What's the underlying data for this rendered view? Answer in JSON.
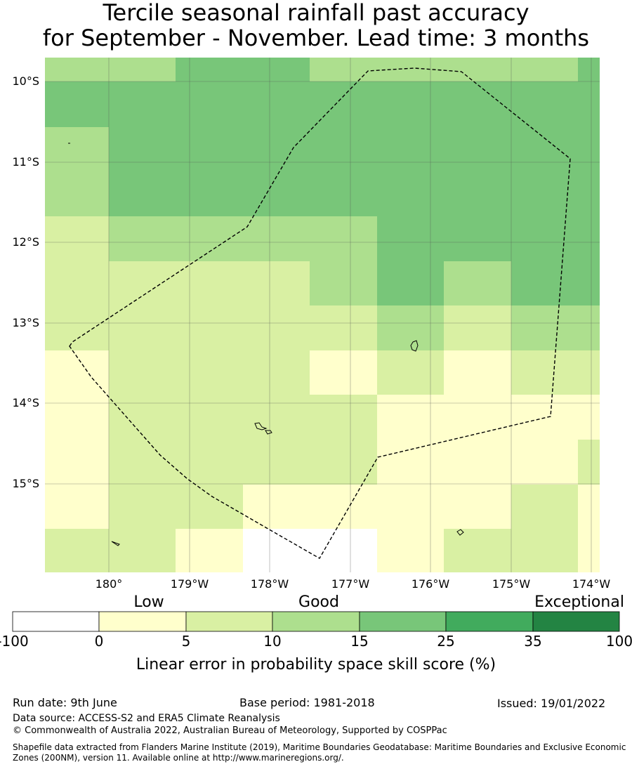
{
  "title": {
    "line1": "Tercile seasonal rainfall past accuracy",
    "line2": "for September - November. Lead time: 3 months"
  },
  "map": {
    "lat_labels": [
      "10°S",
      "11°S",
      "12°S",
      "13°S",
      "14°S",
      "15°S"
    ],
    "lon_labels": [
      "180°",
      "179°W",
      "178°W",
      "177°W",
      "176°W",
      "175°W",
      "174°W"
    ],
    "grid_colors": [
      [
        "#addf8e",
        "#addf8e",
        "#78c679",
        "#78c679",
        "#addf8e",
        "#addf8e",
        "#addf8e",
        "#addf8e",
        "#78c679"
      ],
      [
        "#78c679",
        "#78c679",
        "#78c679",
        "#78c679",
        "#78c679",
        "#78c679",
        "#78c679",
        "#78c679",
        "#78c679"
      ],
      [
        "#addf8e",
        "#78c679",
        "#78c679",
        "#78c679",
        "#78c679",
        "#78c679",
        "#78c679",
        "#78c679",
        "#78c679"
      ],
      [
        "#addf8e",
        "#78c679",
        "#78c679",
        "#78c679",
        "#78c679",
        "#78c679",
        "#78c679",
        "#78c679",
        "#78c679"
      ],
      [
        "#d9f0a3",
        "#addf8e",
        "#addf8e",
        "#addf8e",
        "#addf8e",
        "#78c679",
        "#78c679",
        "#78c679",
        "#78c679"
      ],
      [
        "#d9f0a3",
        "#d9f0a3",
        "#d9f0a3",
        "#d9f0a3",
        "#addf8e",
        "#78c679",
        "#addf8e",
        "#78c679",
        "#78c679"
      ],
      [
        "#d9f0a3",
        "#d9f0a3",
        "#d9f0a3",
        "#d9f0a3",
        "#d9f0a3",
        "#addf8e",
        "#d9f0a3",
        "#addf8e",
        "#addf8e"
      ],
      [
        "#ffffcc",
        "#d9f0a3",
        "#d9f0a3",
        "#d9f0a3",
        "#ffffcc",
        "#d9f0a3",
        "#ffffcc",
        "#d9f0a3",
        "#d9f0a3"
      ],
      [
        "#ffffcc",
        "#d9f0a3",
        "#d9f0a3",
        "#d9f0a3",
        "#d9f0a3",
        "#ffffcc",
        "#ffffcc",
        "#ffffcc",
        "#ffffcc"
      ],
      [
        "#ffffcc",
        "#d9f0a3",
        "#d9f0a3",
        "#d9f0a3",
        "#d9f0a3",
        "#ffffcc",
        "#ffffcc",
        "#ffffcc",
        "#d9f0a3"
      ],
      [
        "#ffffcc",
        "#d9f0a3",
        "#d9f0a3",
        "#ffffcc",
        "#ffffcc",
        "#ffffcc",
        "#ffffcc",
        "#d9f0a3",
        "#ffffcc"
      ],
      [
        "#d9f0a3",
        "#d9f0a3",
        "#ffffcc",
        "#ffffff",
        "#ffffff",
        "#ffffcc",
        "#d9f0a3",
        "#d9f0a3",
        "#ffffcc"
      ]
    ]
  },
  "colorbar": {
    "categories": [
      "Low",
      "Good",
      "Exceptional"
    ],
    "ticks": [
      "-100",
      "0",
      "5",
      "10",
      "15",
      "25",
      "35",
      "100"
    ],
    "colors": [
      "#ffffff",
      "#ffffcc",
      "#d9f0a3",
      "#addf8e",
      "#78c679",
      "#41ab5d",
      "#238443"
    ],
    "label": "Linear error in probability space skill score (%)"
  },
  "footer": {
    "run_date": "Run date: 9th June",
    "base_period": "Base period: 1981-2018",
    "issued": "Issued: 19/01/2022",
    "data_source": "Data source: ACCESS-S2 and ERA5 Climate Reanalysis",
    "copyright": "© Commonwealth of Australia 2022, Australian Bureau of Meteorology, Supported by COSPPac",
    "shapefile": "Shapefile data extracted from Flanders Marine Institute (2019), Maritime Boundaries Geodatabase: Maritime Boundaries and Exclusive Economic Zones (200NM), version 11. Available online at http://www.marineregions.org/."
  }
}
